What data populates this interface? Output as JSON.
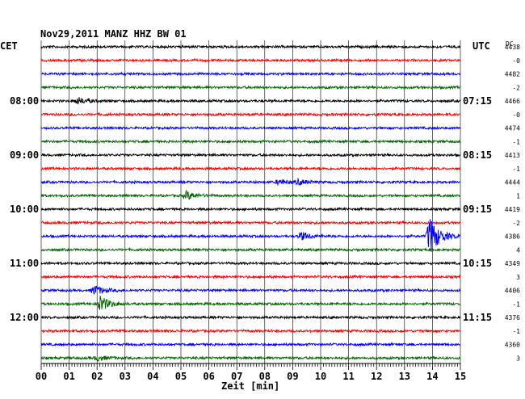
{
  "header": {
    "date_station": "Nov29,2011   MANZ HHZ BW 01",
    "left_tz": "CET",
    "right_tz": "UTC",
    "dc_label": "DC"
  },
  "chart_data": {
    "type": "line",
    "title": "Nov29,2011   MANZ HHZ BW 01",
    "xlabel": "Zeit [min]",
    "xlim": [
      0,
      15
    ],
    "x_ticks": [
      "00",
      "01",
      "02",
      "03",
      "04",
      "05",
      "06",
      "07",
      "08",
      "09",
      "10",
      "11",
      "12",
      "13",
      "14",
      "15"
    ],
    "trace_colors": [
      "#000000",
      "#ff0000",
      "#0000ff",
      "#006400"
    ],
    "trace_count": 24,
    "left_hour_labels": [
      {
        "trace": 4,
        "label": "08:00"
      },
      {
        "trace": 8,
        "label": "09:00"
      },
      {
        "trace": 12,
        "label": "10:00"
      },
      {
        "trace": 16,
        "label": "11:00"
      },
      {
        "trace": 20,
        "label": "12:00"
      }
    ],
    "right_hour_labels": [
      {
        "trace": 4,
        "label": "07:15"
      },
      {
        "trace": 8,
        "label": "08:15"
      },
      {
        "trace": 12,
        "label": "09:15"
      },
      {
        "trace": 16,
        "label": "10:15"
      },
      {
        "trace": 20,
        "label": "11:15"
      }
    ],
    "dc_offsets": [
      "4438",
      "-0",
      "4482",
      "-2",
      "4466",
      "-0",
      "4474",
      "-1",
      "4413",
      "-1",
      "4444",
      "1",
      "4419",
      "-2",
      "4386",
      "4",
      "4349",
      "3",
      "4406",
      "-1",
      "4376",
      "-1",
      "4360",
      "3"
    ],
    "events": [
      {
        "trace": 4,
        "minute": 1.3,
        "amplitude": 4
      },
      {
        "trace": 10,
        "minute": 8.5,
        "amplitude": 3
      },
      {
        "trace": 10,
        "minute": 9.2,
        "amplitude": 3
      },
      {
        "trace": 11,
        "minute": 5.2,
        "amplitude": 5
      },
      {
        "trace": 14,
        "minute": 9.3,
        "amplitude": 5
      },
      {
        "trace": 14,
        "minute": 13.9,
        "amplitude": 24
      },
      {
        "trace": 18,
        "minute": 1.9,
        "amplitude": 6
      },
      {
        "trace": 19,
        "minute": 2.1,
        "amplitude": 10
      },
      {
        "trace": 23,
        "minute": 2.0,
        "amplitude": 3
      }
    ]
  }
}
